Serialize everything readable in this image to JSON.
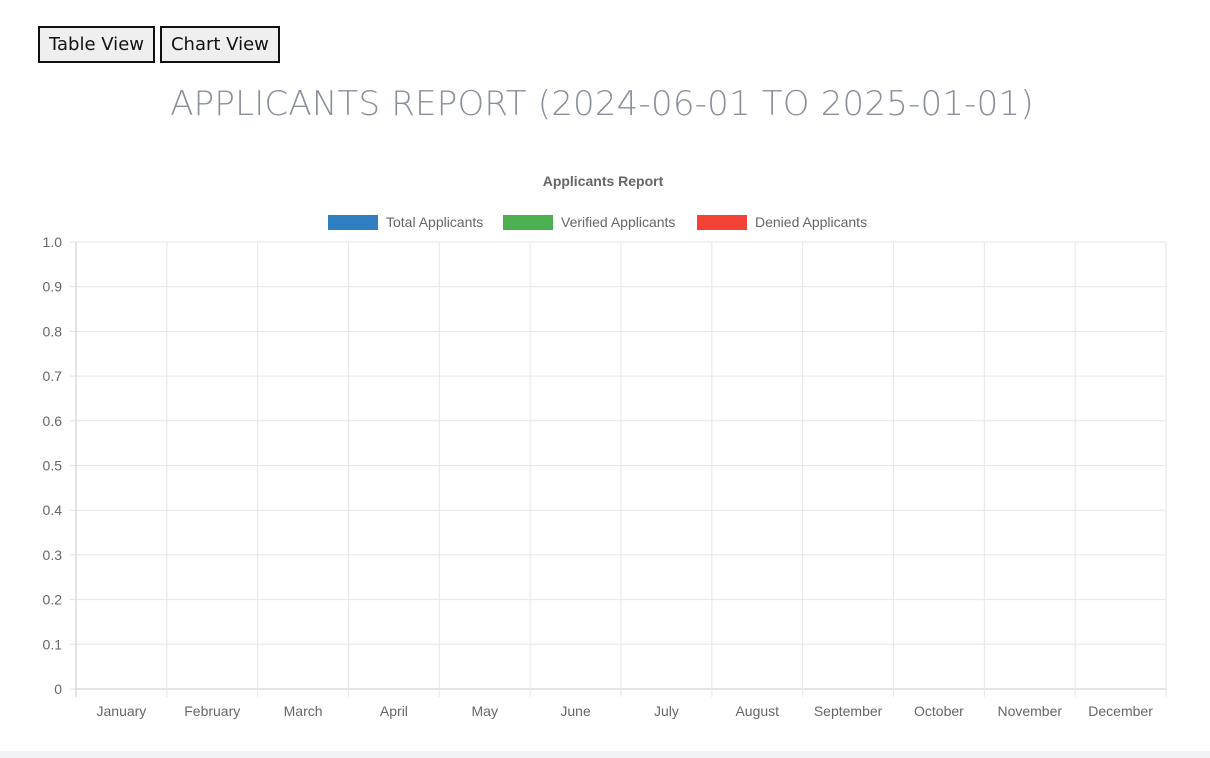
{
  "toolbar": {
    "table_view_label": "Table View",
    "chart_view_label": "Chart View"
  },
  "page": {
    "title": "APPLICANTS REPORT (2024-06-01 TO 2025-01-01)"
  },
  "chart_data": {
    "type": "bar",
    "title": "Applicants Report",
    "xlabel": "",
    "ylabel": "",
    "categories": [
      "January",
      "February",
      "March",
      "April",
      "May",
      "June",
      "July",
      "August",
      "September",
      "October",
      "November",
      "December"
    ],
    "series": [
      {
        "name": "Total Applicants",
        "color": "#2f7ec1",
        "values": [
          0,
          0,
          0,
          0,
          0,
          0,
          0,
          0,
          0,
          0,
          0,
          0
        ]
      },
      {
        "name": "Verified Applicants",
        "color": "#4caf50",
        "values": [
          0,
          0,
          0,
          0,
          0,
          0,
          0,
          0,
          0,
          0,
          0,
          0
        ]
      },
      {
        "name": "Denied Applicants",
        "color": "#f44336",
        "values": [
          0,
          0,
          0,
          0,
          0,
          0,
          0,
          0,
          0,
          0,
          0,
          0
        ]
      }
    ],
    "ylim": [
      0,
      1.0
    ],
    "yticks": [
      "0",
      "0.1",
      "0.2",
      "0.3",
      "0.4",
      "0.5",
      "0.6",
      "0.7",
      "0.8",
      "0.9",
      "1.0"
    ],
    "grid": true,
    "legend_position": "top"
  }
}
